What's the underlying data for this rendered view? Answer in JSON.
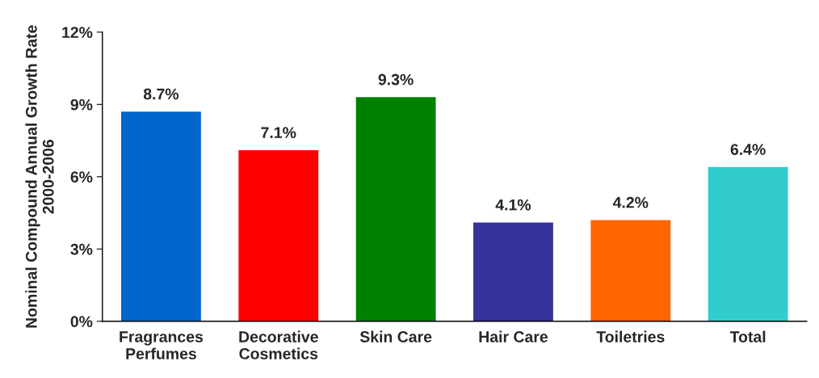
{
  "chart_data": {
    "type": "bar",
    "ylabel": "Nominal Compound Annual Growth Rate\n2000-2006",
    "categories": [
      "Fragrances\nPerfumes",
      "Decorative\nCosmetics",
      "Skin Care",
      "Hair Care",
      "Toiletries",
      "Total"
    ],
    "values": [
      8.7,
      7.1,
      9.3,
      4.1,
      4.2,
      6.4
    ],
    "colors": [
      "#0066cc",
      "#ff0000",
      "#008000",
      "#333399",
      "#ff6600",
      "#33cccc"
    ],
    "value_labels": [
      "8.7%",
      "7.1%",
      "9.3%",
      "4.1%",
      "4.2%",
      "6.4%"
    ],
    "ylim": [
      0,
      12
    ],
    "yticks": [
      {
        "value": 0,
        "label": "0%"
      },
      {
        "value": 3,
        "label": "3%"
      },
      {
        "value": 6,
        "label": "6%"
      },
      {
        "value": 9,
        "label": "9%"
      },
      {
        "value": 12,
        "label": "12%"
      }
    ],
    "grid": false
  }
}
